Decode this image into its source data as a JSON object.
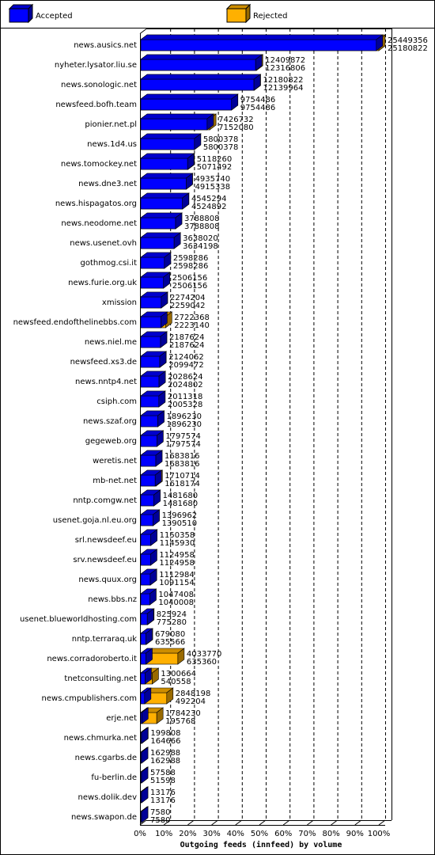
{
  "chart_data": {
    "type": "bar3d",
    "xlabel": "Outgoing feeds (innfeed) by volume",
    "categories": [
      "news.ausics.net",
      "nyheter.lysator.liu.se",
      "news.sonologic.net",
      "newsfeed.bofh.team",
      "pionier.net.pl",
      "news.1d4.us",
      "news.tomockey.net",
      "news.dne3.net",
      "news.hispagatos.org",
      "news.neodome.net",
      "news.usenet.ovh",
      "gothmog.csi.it",
      "news.furie.org.uk",
      "xmission",
      "newsfeed.endofthelinebbs.com",
      "news.niel.me",
      "newsfeed.xs3.de",
      "news.nntp4.net",
      "csiph.com",
      "news.szaf.org",
      "gegeweb.org",
      "weretis.net",
      "mb-net.net",
      "nntp.comgw.net",
      "usenet.goja.nl.eu.org",
      "srl.newsdeef.eu",
      "srv.newsdeef.eu",
      "news.quux.org",
      "news.bbs.nz",
      "usenet.blueworldhosting.com",
      "nntp.terraraq.uk",
      "news.corradoroberto.it",
      "tnetconsulting.net",
      "news.cmpublishers.com",
      "erje.net",
      "news.chmurka.net",
      "news.cgarbs.de",
      "fu-berlin.de",
      "news.dolik.dev",
      "news.swapon.de"
    ],
    "series": [
      {
        "name": "Accepted",
        "color": "#0000ff",
        "values": [
          25180822,
          12316806,
          12139964,
          9754486,
          7152080,
          5800378,
          5071492,
          4915338,
          4524892,
          3788808,
          3634198,
          2598286,
          2506156,
          2259042,
          2223140,
          2187624,
          2099472,
          2024802,
          2005328,
          1896230,
          1797574,
          1683816,
          1618174,
          1481680,
          1390510,
          1145930,
          1124958,
          1091154,
          1040008,
          775280,
          635566,
          635360,
          540558,
          492204,
          195768,
          164666,
          162988,
          51598,
          13176,
          7580
        ]
      },
      {
        "name": "Rejected",
        "color": "#ffb000",
        "values": [
          25449356,
          12409872,
          12180822,
          9754486,
          7426732,
          5800378,
          5118260,
          4935740,
          4545294,
          3788808,
          3638020,
          2598286,
          2506156,
          2274204,
          2722368,
          2187624,
          2124062,
          2028624,
          2011318,
          1896230,
          1797574,
          1683816,
          1710714,
          1481680,
          1396962,
          1150358,
          1124958,
          1112984,
          1047408,
          825924,
          679080,
          4033770,
          1300664,
          2848198,
          1784230,
          199808,
          162988,
          57588,
          13176,
          7580
        ]
      }
    ],
    "xlim": [
      0,
      25449356
    ],
    "xticks": [
      {
        "value": 0,
        "label": "0%"
      },
      {
        "value": 2544935.6,
        "label": "10%"
      },
      {
        "value": 5089871.2,
        "label": "20%"
      },
      {
        "value": 7634806.8,
        "label": "30%"
      },
      {
        "value": 10179742.4,
        "label": "40%"
      },
      {
        "value": 12724678,
        "label": "50%"
      },
      {
        "value": 15269613.6,
        "label": "60%"
      },
      {
        "value": 17814549.2,
        "label": "70%"
      },
      {
        "value": 20359484.8,
        "label": "80%"
      },
      {
        "value": 22904420.4,
        "label": "90%"
      },
      {
        "value": 25449356,
        "label": "100%"
      }
    ],
    "grid": true
  }
}
